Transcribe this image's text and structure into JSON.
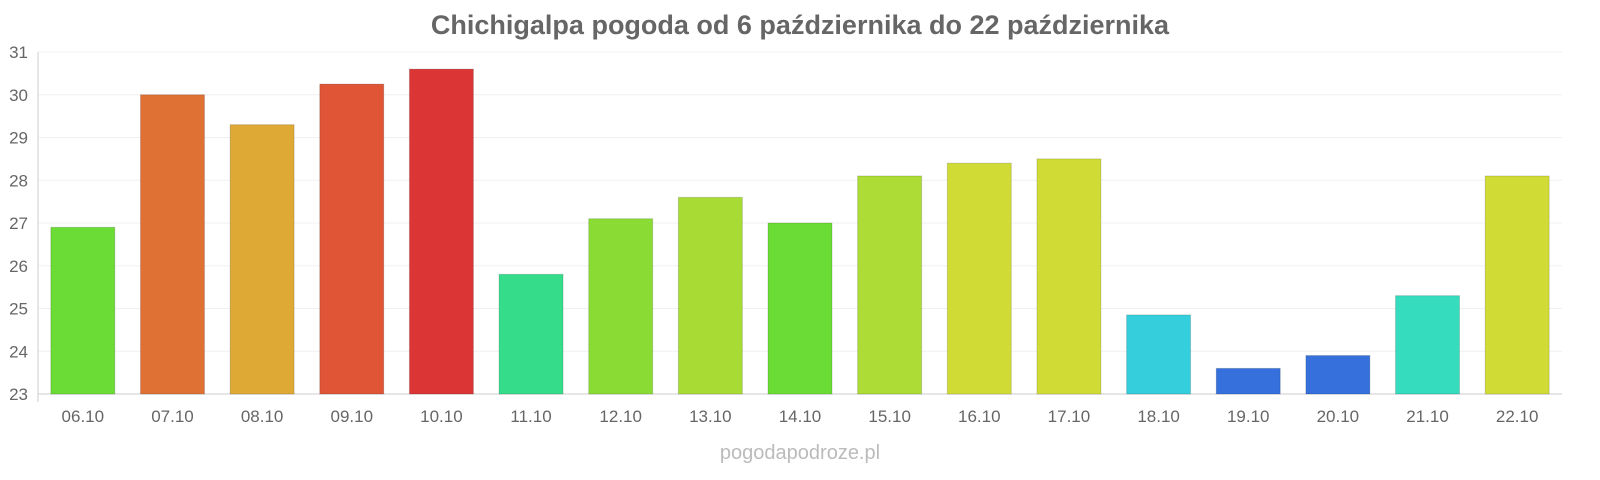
{
  "chart_data": {
    "type": "bar",
    "title": "Chichigalpa pogoda od 6 października do 22 października",
    "xlabel": "",
    "ylabel": "",
    "ylim": [
      23,
      31
    ],
    "yticks": [
      23,
      24,
      25,
      26,
      27,
      28,
      29,
      30,
      31
    ],
    "grid": true,
    "categories": [
      "06.10",
      "07.10",
      "08.10",
      "09.10",
      "10.10",
      "11.10",
      "12.10",
      "13.10",
      "14.10",
      "15.10",
      "16.10",
      "17.10",
      "18.10",
      "19.10",
      "20.10",
      "21.10",
      "22.10"
    ],
    "values": [
      26.9,
      30.0,
      29.3,
      30.25,
      30.6,
      25.8,
      27.1,
      27.6,
      27.0,
      28.1,
      28.4,
      28.5,
      24.85,
      23.6,
      23.9,
      25.3,
      28.1
    ],
    "colors": [
      "#6bdc35",
      "#df7135",
      "#dfa935",
      "#df5535",
      "#dc3535",
      "#35dc8a",
      "#8adc35",
      "#a8dc35",
      "#6bdc35",
      "#acdc35",
      "#d0dc35",
      "#d0dc35",
      "#35cedc",
      "#3570dc",
      "#3570dc",
      "#35dcbe",
      "#d0dc35"
    ]
  },
  "watermark": "pogodapodroze.pl"
}
